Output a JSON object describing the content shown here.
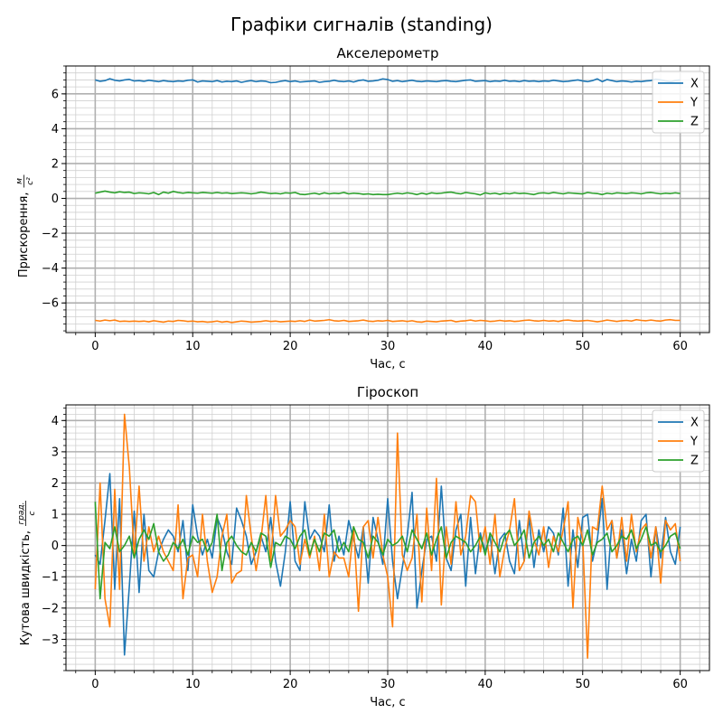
{
  "figure": {
    "suptitle": "Графіки сигналів (standing)"
  },
  "chart_data": [
    {
      "type": "line",
      "title": "Акселерометр",
      "xlabel": "Час, с",
      "ylabel": "Прискорення,",
      "ylabel_unit_num": "м",
      "ylabel_unit_den": "с²",
      "xlim": [
        -3,
        63
      ],
      "ylim": [
        -7.7,
        7.6
      ],
      "xticks": [
        0,
        10,
        20,
        30,
        40,
        50,
        60
      ],
      "yticks": [
        -6,
        -4,
        -2,
        0,
        2,
        4,
        6
      ],
      "xtick_labels": [
        "0",
        "10",
        "20",
        "30",
        "40",
        "50",
        "60"
      ],
      "ytick_labels": [
        "−6",
        "−4",
        "−2",
        "0",
        "2",
        "4",
        "6"
      ],
      "grid": true,
      "minor_grid": true,
      "legend_position": "top-right",
      "x_start": 0,
      "x_step": 0.5,
      "series": [
        {
          "name": "X",
          "color": "#1f77b4",
          "values": [
            6.8,
            6.72,
            6.76,
            6.87,
            6.78,
            6.74,
            6.8,
            6.83,
            6.74,
            6.76,
            6.72,
            6.78,
            6.74,
            6.7,
            6.76,
            6.72,
            6.7,
            6.74,
            6.72,
            6.78,
            6.8,
            6.68,
            6.74,
            6.72,
            6.7,
            6.76,
            6.68,
            6.72,
            6.7,
            6.74,
            6.66,
            6.72,
            6.76,
            6.7,
            6.74,
            6.72,
            6.64,
            6.66,
            6.72,
            6.76,
            6.7,
            6.74,
            6.68,
            6.7,
            6.72,
            6.74,
            6.66,
            6.7,
            6.72,
            6.78,
            6.72,
            6.7,
            6.74,
            6.68,
            6.76,
            6.8,
            6.72,
            6.74,
            6.78,
            6.86,
            6.82,
            6.72,
            6.76,
            6.7,
            6.74,
            6.78,
            6.72,
            6.7,
            6.74,
            6.72,
            6.7,
            6.74,
            6.76,
            6.72,
            6.7,
            6.74,
            6.78,
            6.8,
            6.72,
            6.74,
            6.76,
            6.7,
            6.74,
            6.72,
            6.78,
            6.72,
            6.74,
            6.7,
            6.76,
            6.72,
            6.74,
            6.7,
            6.74,
            6.72,
            6.78,
            6.74,
            6.7,
            6.72,
            6.76,
            6.8,
            6.74,
            6.7,
            6.76,
            6.86,
            6.7,
            6.82,
            6.76,
            6.7,
            6.74,
            6.72,
            6.68,
            6.72,
            6.7,
            6.74,
            6.76,
            6.84,
            6.8,
            6.74,
            6.7,
            6.76,
            6.8
          ]
        },
        {
          "name": "Y",
          "color": "#ff7f0e",
          "values": [
            -7.0,
            -7.04,
            -6.98,
            -7.02,
            -6.98,
            -7.06,
            -7.04,
            -7.06,
            -7.04,
            -7.06,
            -7.04,
            -7.08,
            -7.02,
            -7.06,
            -7.1,
            -7.04,
            -7.06,
            -7.0,
            -7.02,
            -7.06,
            -7.04,
            -7.08,
            -7.06,
            -7.1,
            -7.08,
            -7.04,
            -7.1,
            -7.06,
            -7.12,
            -7.08,
            -7.04,
            -7.06,
            -7.1,
            -7.08,
            -7.06,
            -7.02,
            -7.06,
            -7.04,
            -7.08,
            -7.06,
            -7.04,
            -7.06,
            -7.02,
            -7.06,
            -6.98,
            -7.04,
            -7.02,
            -7.0,
            -6.96,
            -7.02,
            -7.04,
            -7.0,
            -7.06,
            -7.04,
            -7.02,
            -6.98,
            -7.04,
            -7.06,
            -7.02,
            -7.04,
            -7.0,
            -7.06,
            -7.04,
            -7.02,
            -7.06,
            -7.02,
            -7.08,
            -7.1,
            -7.04,
            -7.06,
            -7.08,
            -7.04,
            -7.02,
            -7.0,
            -7.08,
            -7.04,
            -7.02,
            -6.98,
            -7.04,
            -7.0,
            -7.02,
            -7.06,
            -7.04,
            -7.0,
            -7.04,
            -7.02,
            -7.06,
            -7.04,
            -7.0,
            -6.98,
            -7.02,
            -7.04,
            -7.0,
            -7.04,
            -7.02,
            -7.06,
            -7.0,
            -6.98,
            -7.02,
            -7.04,
            -7.02,
            -7.0,
            -7.04,
            -7.08,
            -7.04,
            -6.98,
            -7.02,
            -7.06,
            -7.02,
            -7.0,
            -7.04,
            -6.96,
            -7.0,
            -7.02,
            -6.98,
            -7.02,
            -7.04,
            -6.98,
            -6.96,
            -7.0,
            -7.0
          ]
        },
        {
          "name": "Z",
          "color": "#2ca02c",
          "values": [
            0.3,
            0.36,
            0.42,
            0.36,
            0.32,
            0.38,
            0.34,
            0.36,
            0.28,
            0.32,
            0.3,
            0.26,
            0.34,
            0.22,
            0.36,
            0.3,
            0.4,
            0.34,
            0.3,
            0.34,
            0.32,
            0.3,
            0.34,
            0.32,
            0.3,
            0.34,
            0.3,
            0.32,
            0.28,
            0.3,
            0.32,
            0.3,
            0.26,
            0.3,
            0.36,
            0.32,
            0.28,
            0.3,
            0.26,
            0.32,
            0.3,
            0.34,
            0.24,
            0.22,
            0.26,
            0.3,
            0.24,
            0.32,
            0.26,
            0.3,
            0.28,
            0.34,
            0.26,
            0.3,
            0.28,
            0.24,
            0.26,
            0.22,
            0.24,
            0.22,
            0.22,
            0.26,
            0.3,
            0.26,
            0.32,
            0.28,
            0.22,
            0.3,
            0.24,
            0.32,
            0.28,
            0.3,
            0.34,
            0.36,
            0.3,
            0.26,
            0.34,
            0.3,
            0.26,
            0.2,
            0.32,
            0.26,
            0.3,
            0.24,
            0.3,
            0.26,
            0.32,
            0.28,
            0.3,
            0.26,
            0.22,
            0.3,
            0.32,
            0.28,
            0.34,
            0.3,
            0.26,
            0.32,
            0.3,
            0.28,
            0.26,
            0.34,
            0.3,
            0.28,
            0.22,
            0.3,
            0.26,
            0.32,
            0.3,
            0.28,
            0.32,
            0.3,
            0.26,
            0.32,
            0.34,
            0.3,
            0.26,
            0.3,
            0.28,
            0.32,
            0.28
          ]
        }
      ]
    },
    {
      "type": "line",
      "title": "Гіроскоп",
      "xlabel": "Час, с",
      "ylabel": "Кутова швидкість,",
      "ylabel_unit_num": "град.",
      "ylabel_unit_den": "с",
      "xlim": [
        -3,
        63
      ],
      "ylim": [
        -4.0,
        4.5
      ],
      "xticks": [
        0,
        10,
        20,
        30,
        40,
        50,
        60
      ],
      "yticks": [
        -3,
        -2,
        -1,
        0,
        1,
        2,
        3,
        4
      ],
      "xtick_labels": [
        "0",
        "10",
        "20",
        "30",
        "40",
        "50",
        "60"
      ],
      "ytick_labels": [
        "−3",
        "−2",
        "−1",
        "0",
        "1",
        "2",
        "3",
        "4"
      ],
      "grid": true,
      "minor_grid": true,
      "legend_position": "top-right",
      "x_start": 0,
      "x_step": 0.5,
      "series": [
        {
          "name": "X",
          "color": "#1f77b4",
          "values": [
            -0.3,
            -0.6,
            0.8,
            2.3,
            -1.4,
            1.5,
            -3.5,
            -1.3,
            1.1,
            -1.5,
            1.0,
            -0.8,
            -1.0,
            -0.2,
            0.2,
            0.5,
            0.3,
            -0.2,
            0.8,
            -0.8,
            1.3,
            0.3,
            -0.3,
            0.2,
            -0.4,
            0.9,
            0.5,
            -0.2,
            -0.6,
            1.2,
            0.8,
            0.3,
            -0.6,
            -0.2,
            0.3,
            -0.2,
            0.9,
            -0.5,
            -1.3,
            -0.2,
            1.4,
            -0.5,
            -0.8,
            1.4,
            0.2,
            0.5,
            0.3,
            -0.2,
            1.3,
            -0.5,
            0.3,
            -0.3,
            0.8,
            0.2,
            -0.4,
            0.6,
            -1.2,
            0.9,
            0.2,
            -0.6,
            1.5,
            -0.5,
            -1.7,
            -0.7,
            0.3,
            1.7,
            -2.0,
            -0.8,
            0.2,
            0.3,
            -0.5,
            1.9,
            -0.4,
            -0.8,
            0.5,
            1.0,
            -1.3,
            0.9,
            -0.9,
            0.4,
            -0.2,
            0.3,
            -0.9,
            0.2,
            0.4,
            -0.5,
            -0.9,
            0.8,
            -0.5,
            0.9,
            -0.7,
            0.5,
            -0.2,
            0.6,
            0.4,
            -0.3,
            1.2,
            -1.3,
            0.5,
            -0.7,
            0.9,
            1.0,
            -0.5,
            0.2,
            1.5,
            -1.4,
            0.8,
            -0.4,
            0.5,
            -0.9,
            0.2,
            -0.5,
            0.8,
            1.0,
            -1.0,
            0.6,
            -0.4,
            0.9,
            -0.2,
            -0.6,
            0.6
          ]
        },
        {
          "name": "Y",
          "color": "#ff7f0e",
          "values": [
            -1.4,
            2.0,
            -1.7,
            -2.6,
            1.8,
            -1.4,
            4.2,
            2.5,
            -0.3,
            1.9,
            -0.5,
            0.6,
            -0.2,
            0.3,
            -0.2,
            -0.5,
            -0.8,
            1.3,
            -1.7,
            -0.4,
            -0.3,
            -1.0,
            1.0,
            -0.5,
            -1.5,
            -1.0,
            0.3,
            1.0,
            -1.2,
            -0.9,
            -0.8,
            1.6,
            0.3,
            -0.8,
            0.2,
            1.6,
            -0.5,
            1.6,
            0.3,
            0.5,
            0.8,
            0.6,
            -0.6,
            0.2,
            -0.4,
            0.3,
            -0.8,
            1.0,
            -1.0,
            -0.2,
            -0.4,
            -0.4,
            -1.0,
            0.6,
            -2.1,
            0.6,
            0.8,
            -0.4,
            0.9,
            -0.3,
            -1.0,
            -2.6,
            3.6,
            -0.3,
            -0.8,
            -0.4,
            1.0,
            -1.8,
            1.2,
            -0.8,
            2.15,
            -1.9,
            0.6,
            -0.6,
            1.4,
            -0.3,
            0.3,
            1.6,
            1.4,
            -0.2,
            0.6,
            -0.6,
            1.0,
            -1.0,
            -0.1,
            0.5,
            1.5,
            -0.8,
            -0.5,
            1.1,
            0.2,
            -0.3,
            0.6,
            -0.7,
            0.3,
            -0.2,
            0.5,
            1.4,
            -2.0,
            0.9,
            0.2,
            -3.6,
            0.6,
            0.5,
            1.9,
            0.5,
            0.8,
            -0.4,
            0.9,
            -0.5,
            1.0,
            -0.2,
            0.5,
            0.7,
            -0.4,
            0.6,
            -1.2,
            0.8,
            0.5,
            0.7,
            -0.5
          ]
        },
        {
          "name": "Z",
          "color": "#2ca02c",
          "values": [
            1.4,
            -1.7,
            0.1,
            -0.1,
            0.6,
            -0.2,
            0.0,
            0.3,
            -0.4,
            0.2,
            0.5,
            0.2,
            0.7,
            -0.2,
            -0.5,
            -0.3,
            0.1,
            -0.1,
            0.2,
            -0.3,
            0.3,
            0.1,
            0.2,
            -0.2,
            0.1,
            1.0,
            -0.8,
            0.1,
            0.3,
            0.0,
            -0.2,
            -0.3,
            0.1,
            -0.2,
            0.4,
            0.3,
            -0.7,
            0.1,
            0.0,
            0.3,
            0.2,
            -0.1,
            0.3,
            0.5,
            -0.3,
            0.2,
            -0.2,
            0.4,
            0.3,
            0.5,
            -0.2,
            0.1,
            -0.2,
            0.6,
            0.2,
            0.1,
            -0.4,
            0.3,
            0.1,
            -0.3,
            0.2,
            0.0,
            0.1,
            0.3,
            -0.2,
            0.5,
            0.2,
            -0.1,
            0.4,
            -0.3,
            0.2,
            0.6,
            -0.4,
            0.1,
            0.3,
            0.2,
            0.1,
            -0.2,
            0.0,
            0.3,
            -0.3,
            0.4,
            0.1,
            -0.2,
            0.3,
            0.5,
            0.0,
            0.2,
            0.5,
            -0.4,
            0.1,
            0.3,
            0.0,
            0.2,
            -0.2,
            0.4,
            0.1,
            -0.2,
            0.2,
            0.3,
            0.0,
            0.5,
            -0.3,
            0.1,
            0.2,
            0.4,
            -0.2,
            0.0,
            0.3,
            0.2,
            0.5,
            -0.1,
            0.2,
            0.6,
            0.0,
            0.1,
            -0.2,
            0.0,
            0.3,
            0.4,
            -0.1
          ]
        }
      ]
    }
  ]
}
